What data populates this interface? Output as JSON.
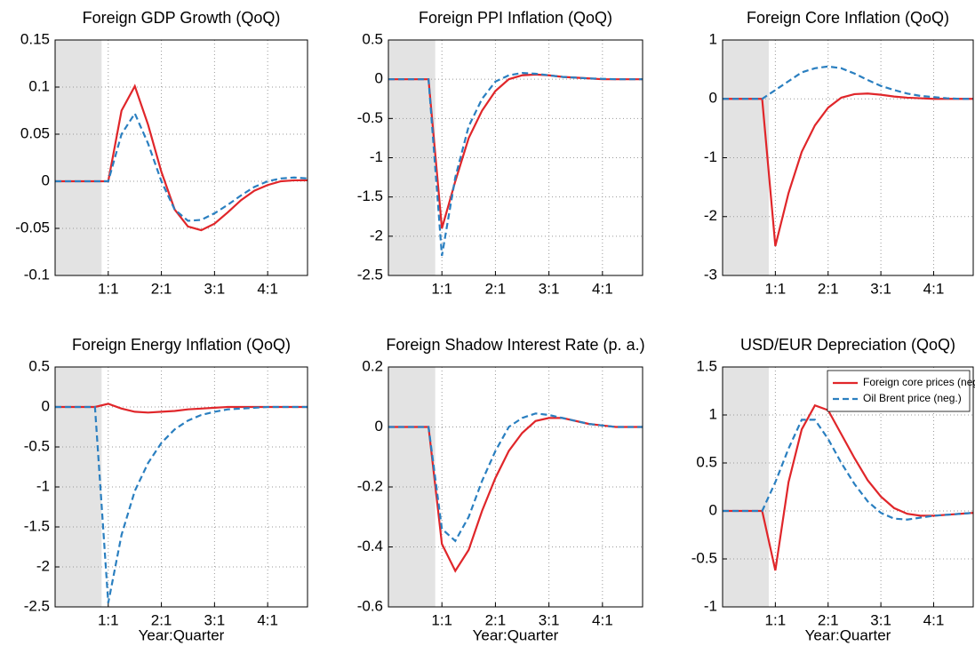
{
  "chart_data": [
    {
      "type": "line",
      "title": "Foreign GDP Growth (QoQ)",
      "x": [
        -3,
        -2,
        -1,
        0,
        1,
        2,
        3,
        4,
        5,
        6,
        7,
        8,
        9,
        10,
        11,
        12,
        13,
        14,
        15,
        16
      ],
      "xlim": [
        -3,
        16
      ],
      "xticks": [
        {
          "value": 1,
          "label": "1:1"
        },
        {
          "value": 5,
          "label": "2:1"
        },
        {
          "value": 9,
          "label": "3:1"
        },
        {
          "value": 13,
          "label": "4:1"
        }
      ],
      "ylim": [
        -0.1,
        0.15
      ],
      "yticks": [
        -0.1,
        -0.05,
        0,
        0.05,
        0.1,
        0.15
      ],
      "grid": true,
      "shade": [
        -3,
        0.5
      ],
      "series": [
        {
          "color": "#e0262a",
          "style": "solid",
          "values": [
            0,
            0,
            0,
            0,
            0,
            0.075,
            0.101,
            0.06,
            0.01,
            -0.03,
            -0.048,
            -0.052,
            -0.045,
            -0.033,
            -0.02,
            -0.01,
            -0.004,
            0,
            0.001,
            0.001
          ]
        },
        {
          "color": "#2a7fc0",
          "style": "dashed",
          "values": [
            0,
            0,
            0,
            0,
            0,
            0.05,
            0.072,
            0.04,
            0,
            -0.03,
            -0.042,
            -0.041,
            -0.034,
            -0.025,
            -0.015,
            -0.006,
            0,
            0.003,
            0.004,
            0.003
          ]
        }
      ]
    },
    {
      "type": "line",
      "title": "Foreign PPI Inflation (QoQ)",
      "x": [
        -3,
        -2,
        -1,
        0,
        1,
        2,
        3,
        4,
        5,
        6,
        7,
        8,
        9,
        10,
        11,
        12,
        13,
        14,
        15,
        16
      ],
      "xlim": [
        -3,
        16
      ],
      "xticks": [
        {
          "value": 1,
          "label": "1:1"
        },
        {
          "value": 5,
          "label": "2:1"
        },
        {
          "value": 9,
          "label": "3:1"
        },
        {
          "value": 13,
          "label": "4:1"
        }
      ],
      "ylim": [
        -2.5,
        0.5
      ],
      "yticks": [
        -2.5,
        -2,
        -1.5,
        -1,
        -0.5,
        0,
        0.5
      ],
      "grid": true,
      "shade": [
        -3,
        0.5
      ],
      "series": [
        {
          "color": "#e0262a",
          "style": "solid",
          "values": [
            0,
            0,
            0,
            0,
            -1.9,
            -1.3,
            -0.75,
            -0.4,
            -0.15,
            0,
            0.05,
            0.06,
            0.05,
            0.03,
            0.02,
            0.01,
            0,
            0,
            0,
            0
          ]
        },
        {
          "color": "#2a7fc0",
          "style": "dashed",
          "values": [
            0,
            0,
            0,
            0,
            -2.25,
            -1.25,
            -0.6,
            -0.25,
            -0.03,
            0.05,
            0.08,
            0.07,
            0.05,
            0.03,
            0.02,
            0.01,
            0.005,
            0,
            0,
            0
          ]
        }
      ]
    },
    {
      "type": "line",
      "title": "Foreign Core Inflation (QoQ)",
      "x": [
        -3,
        -2,
        -1,
        0,
        1,
        2,
        3,
        4,
        5,
        6,
        7,
        8,
        9,
        10,
        11,
        12,
        13,
        14,
        15,
        16
      ],
      "xlim": [
        -3,
        16
      ],
      "xticks": [
        {
          "value": 1,
          "label": "1:1"
        },
        {
          "value": 5,
          "label": "2:1"
        },
        {
          "value": 9,
          "label": "3:1"
        },
        {
          "value": 13,
          "label": "4:1"
        }
      ],
      "ylim": [
        -3,
        1
      ],
      "yticks": [
        -3,
        -2,
        -1,
        0,
        1
      ],
      "grid": true,
      "shade": [
        -3,
        0.5
      ],
      "series": [
        {
          "color": "#e0262a",
          "style": "solid",
          "values": [
            0,
            0,
            0,
            0,
            -2.5,
            -1.6,
            -0.9,
            -0.45,
            -0.15,
            0.02,
            0.08,
            0.09,
            0.07,
            0.04,
            0.02,
            0.01,
            0,
            0,
            0,
            0
          ]
        },
        {
          "color": "#2a7fc0",
          "style": "dashed",
          "values": [
            0,
            0,
            0,
            0,
            0.15,
            0.3,
            0.45,
            0.52,
            0.55,
            0.52,
            0.43,
            0.32,
            0.22,
            0.15,
            0.09,
            0.05,
            0.03,
            0.01,
            0,
            0
          ]
        }
      ]
    },
    {
      "type": "line",
      "title": "Foreign Energy Inflation (QoQ)",
      "x_label": "Year:Quarter",
      "x": [
        -3,
        -2,
        -1,
        0,
        1,
        2,
        3,
        4,
        5,
        6,
        7,
        8,
        9,
        10,
        11,
        12,
        13,
        14,
        15,
        16
      ],
      "xlim": [
        -3,
        16
      ],
      "xticks": [
        {
          "value": 1,
          "label": "1:1"
        },
        {
          "value": 5,
          "label": "2:1"
        },
        {
          "value": 9,
          "label": "3:1"
        },
        {
          "value": 13,
          "label": "4:1"
        }
      ],
      "ylim": [
        -2.5,
        0.5
      ],
      "yticks": [
        -2.5,
        -2,
        -1.5,
        -1,
        -0.5,
        0,
        0.5
      ],
      "grid": true,
      "shade": [
        -3,
        0.5
      ],
      "series": [
        {
          "color": "#e0262a",
          "style": "solid",
          "values": [
            0,
            0,
            0,
            0,
            0.04,
            -0.02,
            -0.06,
            -0.07,
            -0.06,
            -0.05,
            -0.03,
            -0.02,
            -0.01,
            0,
            0,
            0,
            0,
            0,
            0,
            0
          ]
        },
        {
          "color": "#2a7fc0",
          "style": "dashed",
          "values": [
            0,
            0,
            0,
            0,
            -2.45,
            -1.6,
            -1.05,
            -0.7,
            -0.45,
            -0.28,
            -0.17,
            -0.1,
            -0.06,
            -0.03,
            -0.02,
            -0.01,
            0,
            0,
            0,
            0
          ]
        }
      ]
    },
    {
      "type": "line",
      "title": "Foreign Shadow Interest Rate (p. a.)",
      "x_label": "Year:Quarter",
      "x": [
        -3,
        -2,
        -1,
        0,
        1,
        2,
        3,
        4,
        5,
        6,
        7,
        8,
        9,
        10,
        11,
        12,
        13,
        14,
        15,
        16
      ],
      "xlim": [
        -3,
        16
      ],
      "xticks": [
        {
          "value": 1,
          "label": "1:1"
        },
        {
          "value": 5,
          "label": "2:1"
        },
        {
          "value": 9,
          "label": "3:1"
        },
        {
          "value": 13,
          "label": "4:1"
        }
      ],
      "ylim": [
        -0.6,
        0.2
      ],
      "yticks": [
        -0.6,
        -0.4,
        -0.2,
        0,
        0.2
      ],
      "grid": true,
      "shade": [
        -3,
        0.5
      ],
      "series": [
        {
          "color": "#e0262a",
          "style": "solid",
          "values": [
            0,
            0,
            0,
            0,
            -0.39,
            -0.48,
            -0.41,
            -0.28,
            -0.17,
            -0.08,
            -0.02,
            0.02,
            0.03,
            0.03,
            0.02,
            0.01,
            0.005,
            0,
            0,
            0
          ]
        },
        {
          "color": "#2a7fc0",
          "style": "dashed",
          "values": [
            0,
            0,
            0,
            0,
            -0.34,
            -0.38,
            -0.3,
            -0.18,
            -0.08,
            0,
            0.03,
            0.045,
            0.04,
            0.03,
            0.02,
            0.01,
            0.005,
            0,
            0,
            0
          ]
        }
      ]
    },
    {
      "type": "line",
      "title": "USD/EUR Depreciation (QoQ)",
      "x_label": "Year:Quarter",
      "legend": "upper right",
      "x": [
        -3,
        -2,
        -1,
        0,
        1,
        2,
        3,
        4,
        5,
        6,
        7,
        8,
        9,
        10,
        11,
        12,
        13,
        14,
        15,
        16
      ],
      "xlim": [
        -3,
        16
      ],
      "xticks": [
        {
          "value": 1,
          "label": "1:1"
        },
        {
          "value": 5,
          "label": "2:1"
        },
        {
          "value": 9,
          "label": "3:1"
        },
        {
          "value": 13,
          "label": "4:1"
        }
      ],
      "ylim": [
        -1,
        1.5
      ],
      "yticks": [
        -1,
        -0.5,
        0,
        0.5,
        1,
        1.5
      ],
      "grid": true,
      "shade": [
        -3,
        0.5
      ],
      "series": [
        {
          "name": "Foreign core prices (neg.)",
          "color": "#e0262a",
          "style": "solid",
          "values": [
            0,
            0,
            0,
            0,
            -0.62,
            0.3,
            0.85,
            1.1,
            1.05,
            0.8,
            0.55,
            0.32,
            0.15,
            0.03,
            -0.03,
            -0.05,
            -0.05,
            -0.04,
            -0.03,
            -0.02
          ]
        },
        {
          "name": "Oil Brent price (neg.)",
          "color": "#2a7fc0",
          "style": "dashed",
          "values": [
            0,
            0,
            0,
            0,
            0.3,
            0.65,
            0.95,
            0.95,
            0.75,
            0.5,
            0.28,
            0.1,
            -0.02,
            -0.08,
            -0.09,
            -0.07,
            -0.05,
            -0.04,
            -0.03,
            -0.02
          ]
        }
      ]
    }
  ]
}
